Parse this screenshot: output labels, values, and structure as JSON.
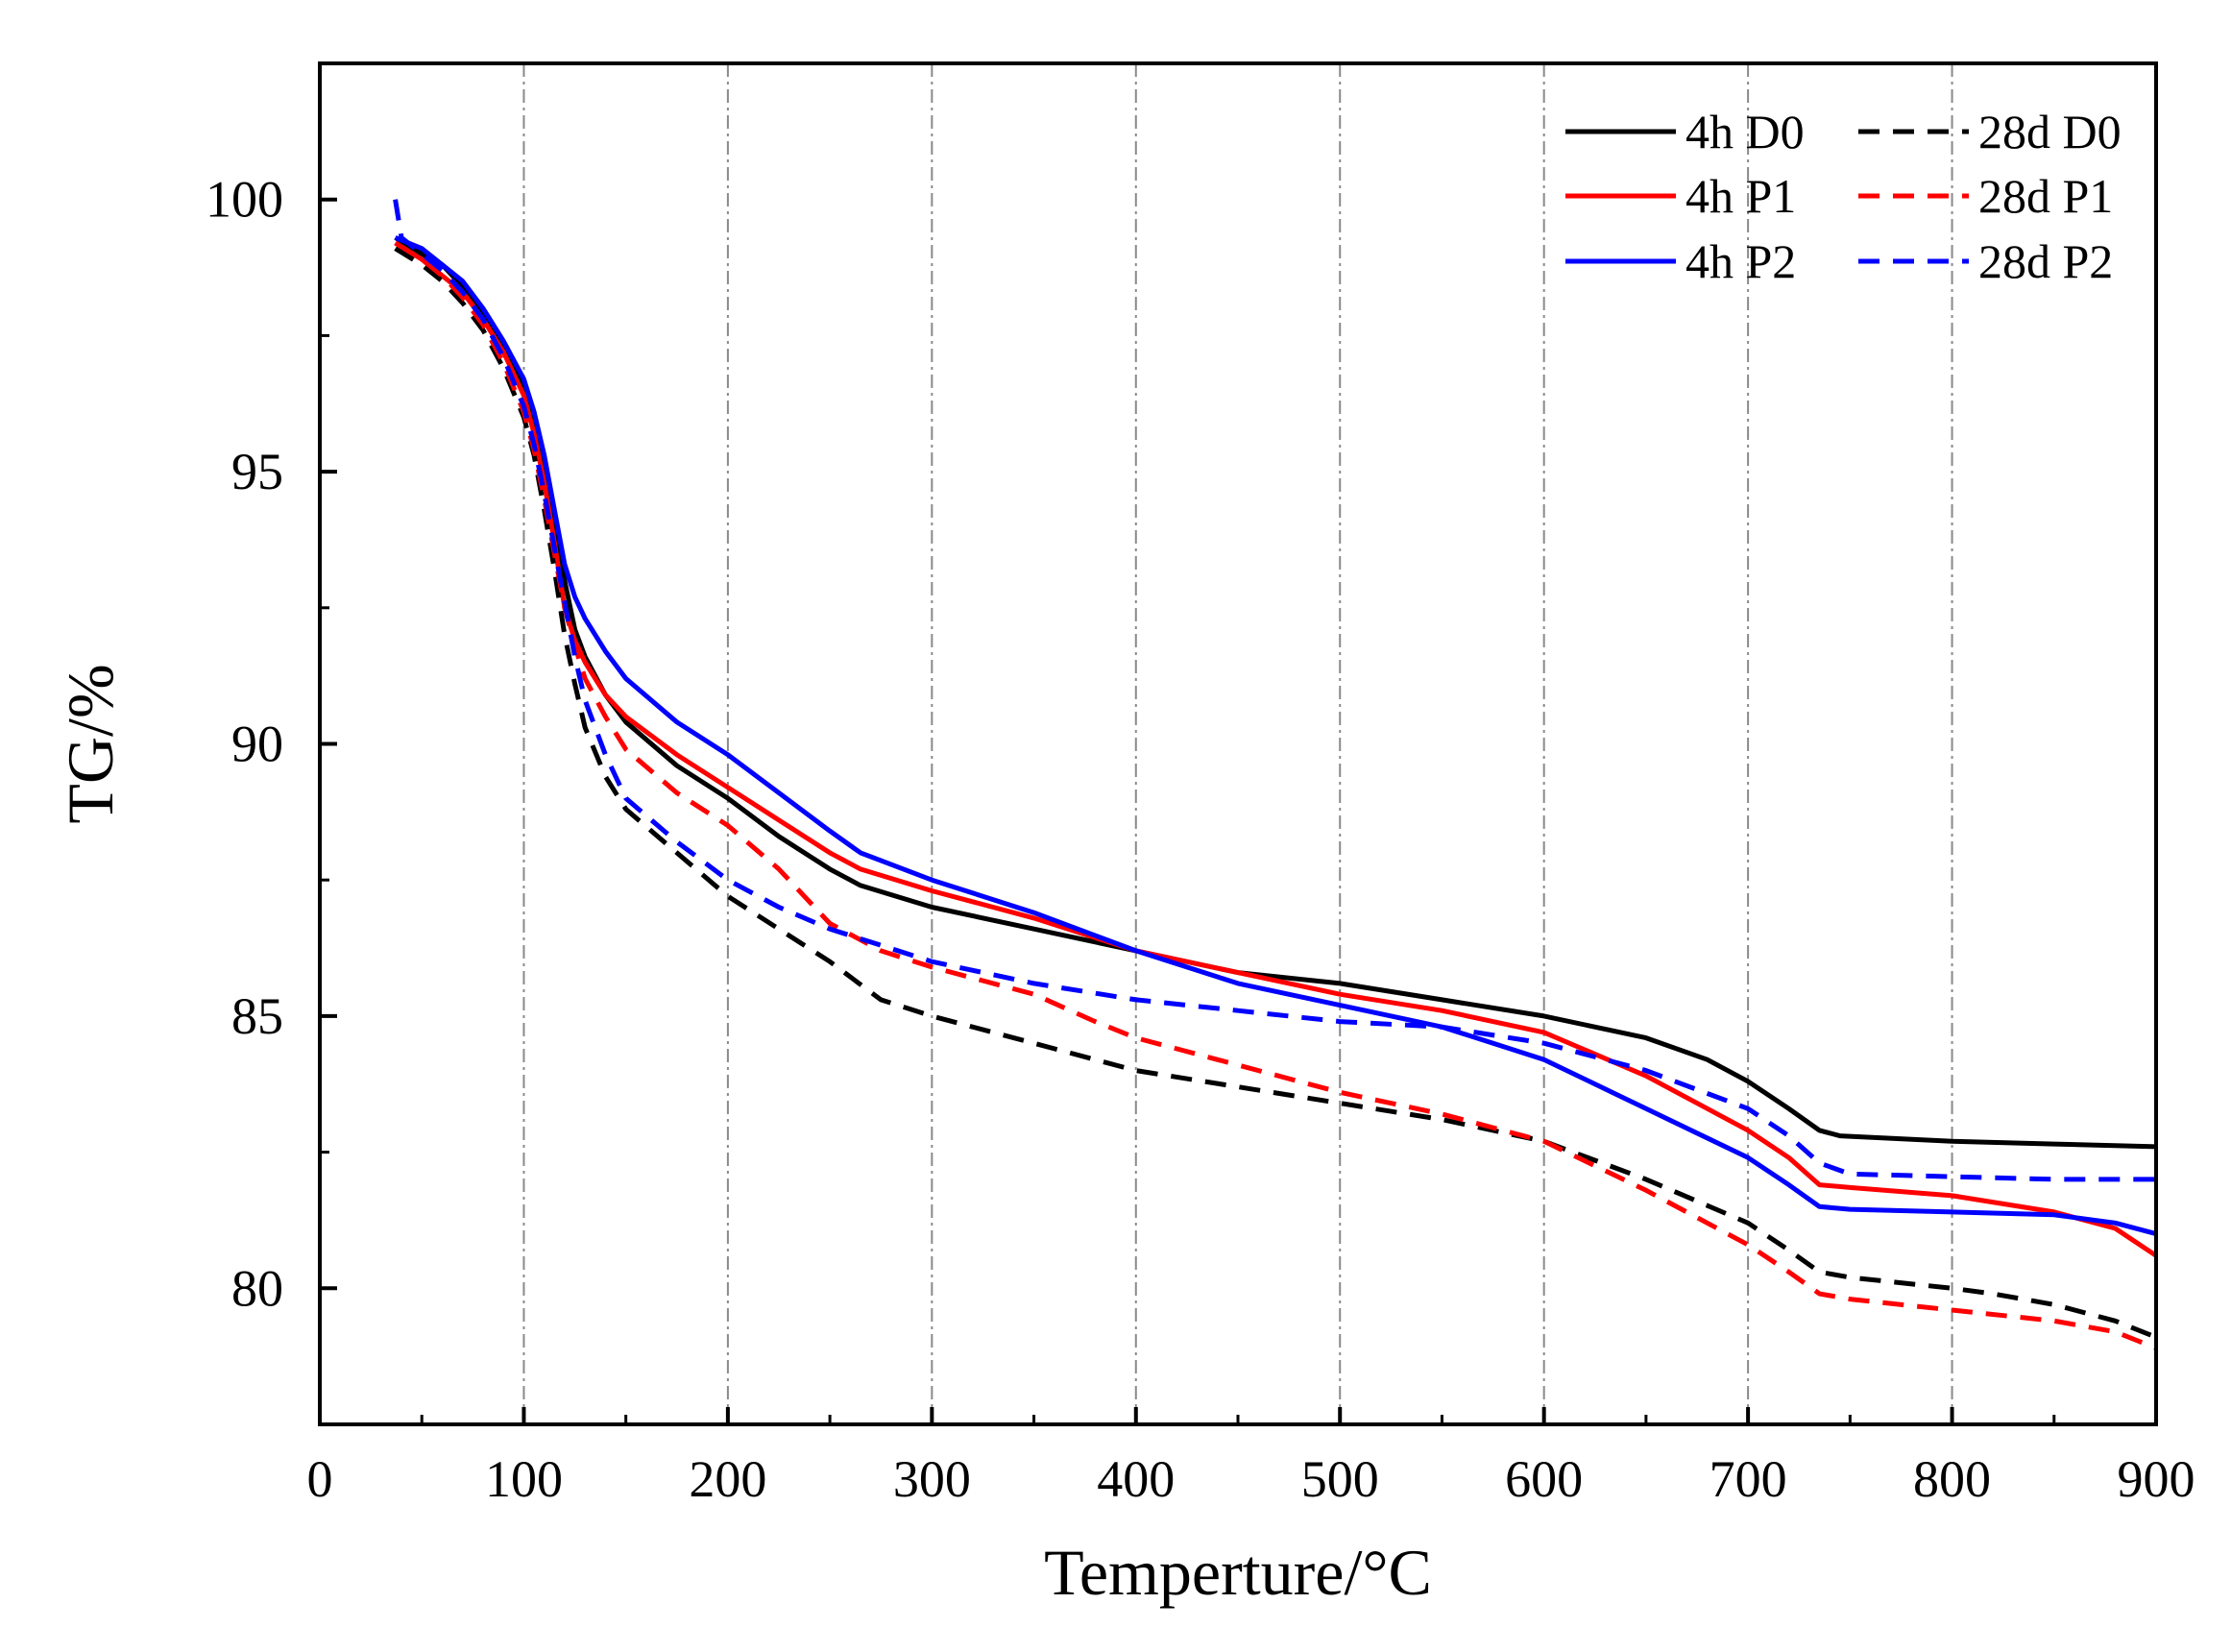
{
  "chart_data": {
    "type": "line",
    "title": "",
    "xlabel": "Temperture/°C",
    "ylabel": "TG/%",
    "xlim": [
      0,
      900
    ],
    "ylim": [
      77.5,
      102.5
    ],
    "xticks": [
      0,
      100,
      200,
      300,
      400,
      500,
      600,
      700,
      800,
      900
    ],
    "yticks": [
      80,
      85,
      90,
      95,
      100
    ],
    "xgrid": [
      100,
      200,
      300,
      400,
      500,
      600,
      700,
      800
    ],
    "legend_position": "top-right",
    "series": [
      {
        "name": "4h D0",
        "color": "#000000",
        "style": "solid",
        "points": [
          [
            37,
            99.3
          ],
          [
            50,
            99.0
          ],
          [
            60,
            98.8
          ],
          [
            70,
            98.4
          ],
          [
            80,
            97.9
          ],
          [
            90,
            97.3
          ],
          [
            100,
            96.5
          ],
          [
            105,
            95.9
          ],
          [
            110,
            95.1
          ],
          [
            115,
            94.1
          ],
          [
            120,
            93.0
          ],
          [
            125,
            92.1
          ],
          [
            130,
            91.6
          ],
          [
            140,
            90.9
          ],
          [
            150,
            90.4
          ],
          [
            175,
            89.6
          ],
          [
            200,
            89.0
          ],
          [
            225,
            88.3
          ],
          [
            250,
            87.7
          ],
          [
            265,
            87.4
          ],
          [
            300,
            87.0
          ],
          [
            350,
            86.6
          ],
          [
            400,
            86.2
          ],
          [
            450,
            85.8
          ],
          [
            500,
            85.6
          ],
          [
            550,
            85.3
          ],
          [
            600,
            85.0
          ],
          [
            650,
            84.6
          ],
          [
            680,
            84.2
          ],
          [
            700,
            83.8
          ],
          [
            720,
            83.3
          ],
          [
            735,
            82.9
          ],
          [
            745,
            82.8
          ],
          [
            800,
            82.7
          ],
          [
            850,
            82.65
          ],
          [
            900,
            82.6
          ]
        ]
      },
      {
        "name": "4h P1",
        "color": "#ff0000",
        "style": "solid",
        "points": [
          [
            37,
            99.2
          ],
          [
            50,
            98.9
          ],
          [
            60,
            98.6
          ],
          [
            70,
            98.3
          ],
          [
            80,
            97.8
          ],
          [
            90,
            97.2
          ],
          [
            100,
            96.4
          ],
          [
            105,
            95.7
          ],
          [
            110,
            94.8
          ],
          [
            115,
            93.7
          ],
          [
            120,
            92.5
          ],
          [
            125,
            91.9
          ],
          [
            130,
            91.5
          ],
          [
            140,
            90.9
          ],
          [
            150,
            90.5
          ],
          [
            175,
            89.8
          ],
          [
            200,
            89.2
          ],
          [
            225,
            88.6
          ],
          [
            250,
            88.0
          ],
          [
            265,
            87.7
          ],
          [
            300,
            87.3
          ],
          [
            350,
            86.8
          ],
          [
            400,
            86.2
          ],
          [
            450,
            85.8
          ],
          [
            500,
            85.4
          ],
          [
            550,
            85.1
          ],
          [
            600,
            84.7
          ],
          [
            650,
            83.9
          ],
          [
            700,
            82.9
          ],
          [
            720,
            82.4
          ],
          [
            735,
            81.9
          ],
          [
            750,
            81.85
          ],
          [
            800,
            81.7
          ],
          [
            850,
            81.4
          ],
          [
            880,
            81.1
          ],
          [
            900,
            80.6
          ]
        ]
      },
      {
        "name": "4h P2",
        "color": "#0000ff",
        "style": "solid",
        "points": [
          [
            37,
            99.3
          ],
          [
            50,
            99.1
          ],
          [
            60,
            98.8
          ],
          [
            70,
            98.5
          ],
          [
            80,
            98.0
          ],
          [
            90,
            97.4
          ],
          [
            100,
            96.7
          ],
          [
            105,
            96.1
          ],
          [
            110,
            95.3
          ],
          [
            115,
            94.3
          ],
          [
            120,
            93.3
          ],
          [
            125,
            92.7
          ],
          [
            130,
            92.3
          ],
          [
            140,
            91.7
          ],
          [
            150,
            91.2
          ],
          [
            175,
            90.4
          ],
          [
            200,
            89.8
          ],
          [
            225,
            89.1
          ],
          [
            250,
            88.4
          ],
          [
            265,
            88.0
          ],
          [
            300,
            87.5
          ],
          [
            350,
            86.9
          ],
          [
            400,
            86.2
          ],
          [
            450,
            85.6
          ],
          [
            500,
            85.2
          ],
          [
            550,
            84.8
          ],
          [
            600,
            84.2
          ],
          [
            650,
            83.3
          ],
          [
            700,
            82.4
          ],
          [
            720,
            81.9
          ],
          [
            735,
            81.5
          ],
          [
            750,
            81.45
          ],
          [
            800,
            81.4
          ],
          [
            850,
            81.35
          ],
          [
            880,
            81.2
          ],
          [
            900,
            81.0
          ]
        ]
      },
      {
        "name": "28d D0",
        "color": "#000000",
        "style": "dashed",
        "points": [
          [
            37,
            99.1
          ],
          [
            50,
            98.8
          ],
          [
            60,
            98.5
          ],
          [
            70,
            98.1
          ],
          [
            80,
            97.6
          ],
          [
            90,
            96.9
          ],
          [
            100,
            96.0
          ],
          [
            105,
            95.3
          ],
          [
            110,
            94.3
          ],
          [
            115,
            93.2
          ],
          [
            120,
            92.0
          ],
          [
            125,
            91.1
          ],
          [
            130,
            90.3
          ],
          [
            140,
            89.4
          ],
          [
            150,
            88.8
          ],
          [
            175,
            88.0
          ],
          [
            200,
            87.2
          ],
          [
            225,
            86.6
          ],
          [
            250,
            86.0
          ],
          [
            275,
            85.3
          ],
          [
            300,
            85.0
          ],
          [
            350,
            84.5
          ],
          [
            400,
            84.0
          ],
          [
            450,
            83.7
          ],
          [
            500,
            83.4
          ],
          [
            550,
            83.1
          ],
          [
            600,
            82.7
          ],
          [
            650,
            82.0
          ],
          [
            700,
            81.2
          ],
          [
            720,
            80.7
          ],
          [
            735,
            80.3
          ],
          [
            750,
            80.2
          ],
          [
            800,
            80.0
          ],
          [
            820,
            79.9
          ],
          [
            850,
            79.7
          ],
          [
            880,
            79.4
          ],
          [
            900,
            79.1
          ]
        ]
      },
      {
        "name": "28d P1",
        "color": "#ff0000",
        "style": "dashed",
        "points": [
          [
            37,
            99.2
          ],
          [
            50,
            98.9
          ],
          [
            60,
            98.6
          ],
          [
            70,
            98.2
          ],
          [
            80,
            97.7
          ],
          [
            90,
            97.0
          ],
          [
            100,
            96.1
          ],
          [
            105,
            95.4
          ],
          [
            110,
            94.5
          ],
          [
            115,
            93.5
          ],
          [
            120,
            92.5
          ],
          [
            125,
            91.8
          ],
          [
            130,
            91.2
          ],
          [
            140,
            90.5
          ],
          [
            150,
            89.9
          ],
          [
            175,
            89.1
          ],
          [
            200,
            88.5
          ],
          [
            225,
            87.7
          ],
          [
            250,
            86.7
          ],
          [
            275,
            86.2
          ],
          [
            300,
            85.9
          ],
          [
            350,
            85.4
          ],
          [
            380,
            84.9
          ],
          [
            400,
            84.6
          ],
          [
            450,
            84.1
          ],
          [
            500,
            83.6
          ],
          [
            550,
            83.2
          ],
          [
            600,
            82.7
          ],
          [
            650,
            81.8
          ],
          [
            700,
            80.8
          ],
          [
            720,
            80.3
          ],
          [
            735,
            79.9
          ],
          [
            750,
            79.8
          ],
          [
            800,
            79.6
          ],
          [
            850,
            79.4
          ],
          [
            880,
            79.2
          ],
          [
            900,
            78.9
          ]
        ]
      },
      {
        "name": "28d P2",
        "color": "#0000ff",
        "style": "dashed",
        "points": [
          [
            37,
            100.0
          ],
          [
            40,
            99.3
          ],
          [
            50,
            99.0
          ],
          [
            60,
            98.7
          ],
          [
            70,
            98.3
          ],
          [
            80,
            97.8
          ],
          [
            90,
            97.1
          ],
          [
            100,
            96.2
          ],
          [
            105,
            95.5
          ],
          [
            110,
            94.6
          ],
          [
            115,
            93.6
          ],
          [
            120,
            92.6
          ],
          [
            125,
            91.6
          ],
          [
            130,
            90.8
          ],
          [
            140,
            89.8
          ],
          [
            150,
            89.0
          ],
          [
            175,
            88.2
          ],
          [
            200,
            87.5
          ],
          [
            225,
            87.0
          ],
          [
            250,
            86.6
          ],
          [
            275,
            86.3
          ],
          [
            300,
            86.0
          ],
          [
            350,
            85.6
          ],
          [
            400,
            85.3
          ],
          [
            450,
            85.1
          ],
          [
            500,
            84.9
          ],
          [
            550,
            84.8
          ],
          [
            600,
            84.5
          ],
          [
            650,
            84.0
          ],
          [
            700,
            83.3
          ],
          [
            720,
            82.8
          ],
          [
            735,
            82.3
          ],
          [
            750,
            82.1
          ],
          [
            800,
            82.05
          ],
          [
            850,
            82.0
          ],
          [
            900,
            82.0
          ]
        ]
      }
    ]
  }
}
